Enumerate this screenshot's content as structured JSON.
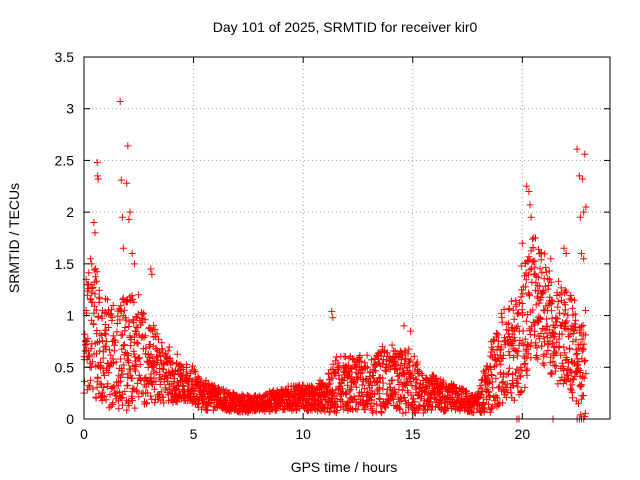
{
  "chart_data": {
    "type": "scatter",
    "title": "Day 101 of 2025, SRMTID for receiver kir0",
    "xlabel": "GPS time / hours",
    "ylabel": "SRMTID / TECUs",
    "xlim": [
      0,
      24
    ],
    "ylim": [
      0,
      3.5
    ],
    "xticks": [
      0,
      5,
      10,
      15,
      20
    ],
    "xtick_labels": [
      "0",
      "5",
      "10",
      "15",
      "20"
    ],
    "yticks": [
      0,
      0.5,
      1,
      1.5,
      2,
      2.5,
      3,
      3.5
    ],
    "ytick_labels": [
      "0",
      "0.5",
      "1",
      "1.5",
      "2",
      "2.5",
      "3",
      "3.5"
    ],
    "grid": true,
    "marker": "+",
    "colors": {
      "series": "#ff0000",
      "grid": "#a0a0a0",
      "axes": "#000000"
    },
    "series": [
      {
        "name": "SRMTID",
        "profile_hours": [
          0,
          0.5,
          1,
          1.5,
          2,
          2.5,
          3,
          3.5,
          4,
          4.5,
          5,
          5.5,
          6,
          6.5,
          7,
          7.5,
          8,
          8.5,
          9,
          9.5,
          10,
          10.5,
          11,
          11.5,
          12,
          12.5,
          13,
          13.5,
          14,
          14.5,
          15,
          15.5,
          16,
          16.5,
          17,
          17.5,
          18,
          18.5,
          19,
          19.5,
          20,
          20.5,
          21,
          21.5,
          22,
          22.5,
          22.9
        ],
        "profile_median": [
          0.75,
          0.8,
          0.6,
          0.55,
          0.65,
          0.6,
          0.55,
          0.45,
          0.4,
          0.38,
          0.3,
          0.22,
          0.2,
          0.18,
          0.15,
          0.14,
          0.15,
          0.17,
          0.18,
          0.2,
          0.2,
          0.2,
          0.22,
          0.3,
          0.32,
          0.35,
          0.3,
          0.35,
          0.38,
          0.35,
          0.32,
          0.25,
          0.25,
          0.22,
          0.2,
          0.17,
          0.15,
          0.35,
          0.55,
          0.6,
          0.8,
          1.2,
          1.0,
          0.85,
          0.8,
          0.55,
          0.45
        ],
        "profile_spread": [
          0.5,
          0.6,
          0.5,
          0.5,
          0.6,
          0.5,
          0.45,
          0.3,
          0.25,
          0.2,
          0.17,
          0.14,
          0.12,
          0.1,
          0.08,
          0.08,
          0.08,
          0.1,
          0.1,
          0.12,
          0.12,
          0.12,
          0.15,
          0.25,
          0.25,
          0.28,
          0.25,
          0.3,
          0.32,
          0.3,
          0.28,
          0.2,
          0.16,
          0.15,
          0.12,
          0.1,
          0.1,
          0.3,
          0.4,
          0.45,
          0.6,
          0.6,
          0.5,
          0.5,
          0.5,
          0.45,
          0.5
        ],
        "peaks": [
          [
            0.1,
            1.35
          ],
          [
            0.15,
            1.3
          ],
          [
            0.3,
            1.55
          ],
          [
            0.35,
            1.5
          ],
          [
            0.45,
            1.9
          ],
          [
            0.5,
            1.8
          ],
          [
            0.6,
            2.48
          ],
          [
            0.62,
            2.35
          ],
          [
            0.65,
            2.32
          ],
          [
            1.65,
            3.07
          ],
          [
            1.7,
            2.31
          ],
          [
            1.75,
            1.95
          ],
          [
            1.8,
            1.65
          ],
          [
            1.95,
            2.28
          ],
          [
            2.0,
            2.64
          ],
          [
            2.05,
            1.93
          ],
          [
            2.1,
            2.0
          ],
          [
            2.2,
            1.6
          ],
          [
            2.3,
            1.5
          ],
          [
            3.05,
            1.45
          ],
          [
            3.1,
            1.4
          ],
          [
            11.3,
            1.04
          ],
          [
            11.35,
            0.98
          ],
          [
            14.6,
            0.9
          ],
          [
            14.9,
            0.85
          ],
          [
            20.0,
            1.7
          ],
          [
            20.2,
            2.25
          ],
          [
            20.3,
            2.2
          ],
          [
            20.35,
            2.07
          ],
          [
            20.4,
            1.95
          ],
          [
            20.6,
            1.75
          ],
          [
            20.8,
            1.6
          ],
          [
            21.3,
            1.55
          ],
          [
            21.9,
            1.65
          ],
          [
            22.0,
            1.6
          ],
          [
            22.5,
            2.61
          ],
          [
            22.6,
            2.35
          ],
          [
            22.75,
            2.32
          ],
          [
            22.8,
            2.0
          ],
          [
            22.85,
            2.56
          ],
          [
            22.9,
            2.05
          ],
          [
            22.65,
            1.95
          ],
          [
            22.7,
            1.6
          ],
          [
            22.8,
            1.55
          ]
        ],
        "zeros": [
          [
            19.75,
            0.0
          ],
          [
            19.85,
            0.0
          ],
          [
            21.4,
            0.0
          ],
          [
            22.5,
            0.0
          ],
          [
            22.6,
            0.0
          ],
          [
            22.7,
            0.0
          ],
          [
            22.8,
            0.0
          ]
        ]
      }
    ]
  }
}
